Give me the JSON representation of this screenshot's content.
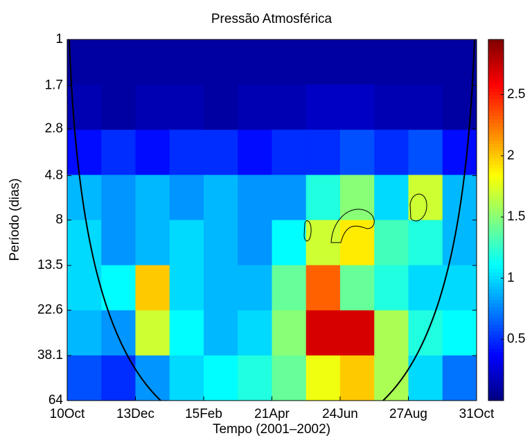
{
  "chart_data": {
    "type": "heatmap",
    "title": "Pressão Atmosférica",
    "xlabel": "Tempo (2001–2002)",
    "ylabel": "Período (dias)",
    "xticks": [
      "10Oct",
      "13Dec",
      "15Feb",
      "21Apr",
      "24Jun",
      "27Aug",
      "31Oct"
    ],
    "ylim": [
      1,
      64
    ],
    "yscale": "log",
    "y_inverted": true,
    "yticks": [
      1,
      1.7,
      2.8,
      4.8,
      8,
      13.5,
      22.6,
      38.1,
      64
    ],
    "colormap": "jet",
    "colorbar": {
      "lim": [
        0,
        2.95
      ],
      "ticks": [
        0.5,
        1,
        1.5,
        2,
        2.5
      ]
    },
    "values": [
      [
        0.1,
        0.1,
        0.1,
        0.1,
        0.1,
        0.1,
        0.1,
        0.1,
        0.1,
        0.1,
        0.1,
        0.1
      ],
      [
        0.15,
        0.1,
        0.15,
        0.15,
        0.1,
        0.15,
        0.15,
        0.2,
        0.2,
        0.15,
        0.15,
        0.1
      ],
      [
        0.4,
        0.5,
        0.4,
        0.5,
        0.5,
        0.4,
        0.5,
        0.5,
        0.6,
        0.5,
        0.6,
        0.4
      ],
      [
        0.9,
        0.8,
        0.9,
        0.8,
        0.9,
        0.8,
        0.8,
        1.2,
        1.5,
        1.0,
        1.7,
        0.9
      ],
      [
        1.0,
        0.8,
        0.9,
        1.0,
        0.9,
        0.8,
        1.1,
        1.7,
        1.9,
        1.3,
        1.2,
        0.9
      ],
      [
        1.0,
        1.1,
        2.0,
        1.0,
        0.9,
        0.9,
        1.4,
        2.3,
        1.4,
        1.2,
        1.0,
        1.0
      ],
      [
        0.9,
        0.8,
        1.7,
        1.1,
        0.9,
        1.0,
        1.5,
        2.7,
        2.7,
        1.6,
        1.2,
        1.1
      ],
      [
        0.6,
        0.5,
        0.8,
        1.0,
        1.1,
        1.2,
        1.4,
        1.8,
        2.0,
        1.6,
        1.0,
        0.7
      ]
    ]
  }
}
